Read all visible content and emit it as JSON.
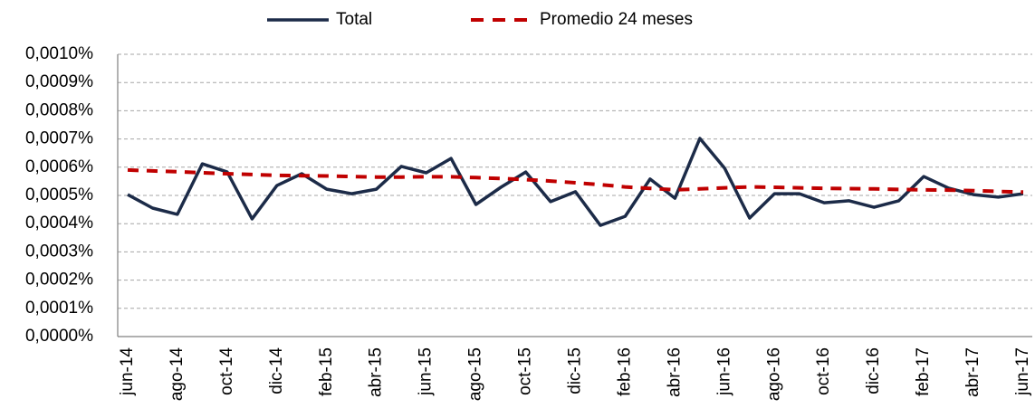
{
  "chart_data": {
    "type": "line",
    "categories": [
      "jun-14",
      null,
      "ago-14",
      null,
      "oct-14",
      null,
      "dic-14",
      null,
      "feb-15",
      null,
      "abr-15",
      null,
      "jun-15",
      null,
      "ago-15",
      null,
      "oct-15",
      null,
      "dic-15",
      null,
      "feb-16",
      null,
      "abr-16",
      null,
      "jun-16",
      null,
      "ago-16",
      null,
      "oct-16",
      null,
      "dic-16",
      null,
      "feb-17",
      null,
      "abr-17",
      null,
      "jun-17"
    ],
    "series": [
      {
        "name": "Total",
        "color": "#1c2b48",
        "dashed": false,
        "values": [
          0.000503,
          0.000455,
          0.000433,
          0.000612,
          0.000583,
          0.000417,
          0.000535,
          0.000577,
          0.000522,
          0.000506,
          0.000522,
          0.000603,
          0.00058,
          0.000631,
          0.000468,
          0.000529,
          0.000583,
          0.000478,
          0.000513,
          0.000394,
          0.000426,
          0.000558,
          0.00049,
          0.000702,
          0.000596,
          0.00042,
          0.000506,
          0.000506,
          0.000474,
          0.000481,
          0.000458,
          0.000481,
          0.000567,
          0.000526,
          0.000503,
          0.000494,
          0.000506
        ]
      },
      {
        "name": "Promedio 24 meses",
        "color": "#c00000",
        "dashed": true,
        "values": [
          0.00059,
          0.000587,
          0.000584,
          0.00058,
          0.000577,
          0.000574,
          0.000571,
          0.00057,
          0.000569,
          0.000567,
          0.000565,
          0.000565,
          0.000566,
          0.000566,
          0.000563,
          0.00056,
          0.000556,
          0.000551,
          0.000545,
          0.000538,
          0.00053,
          0.000525,
          0.00052,
          0.000523,
          0.000527,
          0.00053,
          0.000529,
          0.000527,
          0.000525,
          0.000524,
          0.000523,
          0.000521,
          0.00052,
          0.000519,
          0.000517,
          0.000514,
          0.000512
        ]
      }
    ],
    "ylim": [
      0,
      0.001
    ],
    "yticks": [
      {
        "value": 0,
        "label": "0,0000%"
      },
      {
        "value": 0.0001,
        "label": "0,0001%"
      },
      {
        "value": 0.0002,
        "label": "0,0002%"
      },
      {
        "value": 0.0003,
        "label": "0,0003%"
      },
      {
        "value": 0.0004,
        "label": "0,0004%"
      },
      {
        "value": 0.0005,
        "label": "0,0005%"
      },
      {
        "value": 0.0006,
        "label": "0,0006%"
      },
      {
        "value": 0.0007,
        "label": "0,0007%"
      },
      {
        "value": 0.0008,
        "label": "0,0008%"
      },
      {
        "value": 0.0009,
        "label": "0,0009%"
      },
      {
        "value": 0.001,
        "label": "0,0010%"
      }
    ],
    "grid": true,
    "legend": "top"
  }
}
